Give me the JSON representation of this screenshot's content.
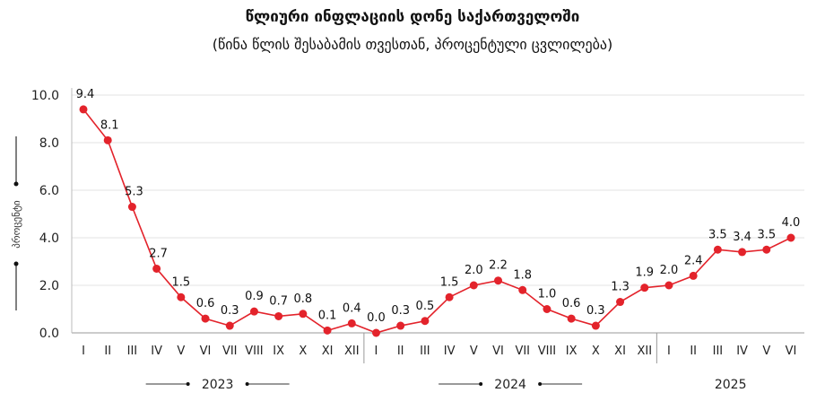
{
  "chart_data": {
    "type": "line",
    "title": "წლიური ინფლაციის დონე საქართველოში",
    "subtitle": "(წინა წლის შესაბამის თვესთან, პროცენტული ცვლილება)",
    "ylabel": "პროცენტი",
    "xlabel": "",
    "ylim": [
      0,
      10
    ],
    "yticks": [
      "0.0",
      "2.0",
      "4.0",
      "6.0",
      "8.0",
      "10.0"
    ],
    "grid": true,
    "color": "#e3232b",
    "years": [
      {
        "label": "2023",
        "months": [
          "I",
          "II",
          "III",
          "IV",
          "V",
          "VI",
          "VII",
          "VIII",
          "IX",
          "X",
          "XI",
          "XII"
        ],
        "values": [
          9.4,
          8.1,
          5.3,
          2.7,
          1.5,
          0.6,
          0.3,
          0.9,
          0.7,
          0.8,
          0.1,
          0.4
        ]
      },
      {
        "label": "2024",
        "months": [
          "I",
          "II",
          "III",
          "IV",
          "V",
          "VI",
          "VII",
          "VIII",
          "IX",
          "X",
          "XI",
          "XII"
        ],
        "values": [
          0.0,
          0.3,
          0.5,
          1.5,
          2.0,
          2.2,
          1.8,
          1.0,
          0.6,
          0.3,
          1.3,
          1.9
        ]
      },
      {
        "label": "2025",
        "months": [
          "I",
          "II",
          "III",
          "IV",
          "V",
          "VI"
        ],
        "values": [
          2.0,
          2.4,
          3.5,
          3.4,
          3.5,
          4.0
        ]
      }
    ]
  }
}
